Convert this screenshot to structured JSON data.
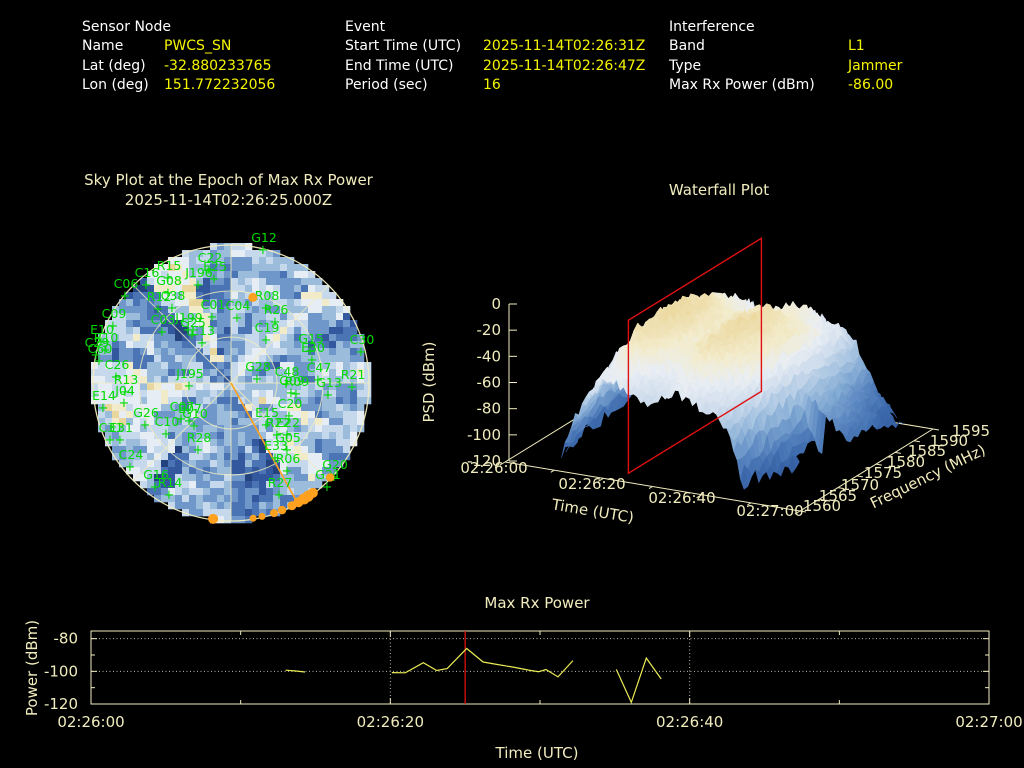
{
  "header": {
    "sensor": {
      "title": "Sensor Node",
      "rows": [
        {
          "label": "Name",
          "value": "PWCS_SN"
        },
        {
          "label": "Lat (deg)",
          "value": "-32.880233765"
        },
        {
          "label": "Lon (deg)",
          "value": "151.772232056"
        }
      ]
    },
    "event": {
      "title": "Event",
      "rows": [
        {
          "label": "Start Time (UTC)",
          "value": "2025-11-14T02:26:31Z"
        },
        {
          "label": "End Time (UTC)",
          "value": "2025-11-14T02:26:47Z"
        },
        {
          "label": "Period (sec)",
          "value": "16"
        }
      ]
    },
    "interference": {
      "title": "Interference",
      "rows": [
        {
          "label": "Band",
          "value": "L1"
        },
        {
          "label": "Type",
          "value": "Jammer"
        },
        {
          "label": "Max Rx Power (dBm)",
          "value": "-86.00"
        }
      ]
    }
  },
  "colors": {
    "background": "#000000",
    "text_white": "#ffffff",
    "value_yellow": "#f5f500",
    "axis_cream": "#f1ecbe",
    "grid_dotted": "#bdbdb0",
    "satellite_green": "#00db00",
    "jammer_orange": "#ffa01e",
    "slice_red": "#e01010",
    "trace_yellow": "#ebeb55"
  },
  "chart_data": [
    {
      "type": "heatmap",
      "variant": "polar-sky-plot",
      "title": "Sky Plot at the Epoch of Max Rx Power",
      "subtitle": "2025-11-14T02:26:25.000Z",
      "elevation_rings_deg": [
        0,
        30,
        60
      ],
      "azimuth_spoke_step_deg": 45,
      "jammer_bearing_deg": 151,
      "horizon_dots": [
        [
          187.5,
          5.0
        ],
        [
          170.7,
          3.5
        ],
        [
          166.9,
          3.5
        ],
        [
          161.7,
          4.0
        ],
        [
          158.1,
          4.2
        ],
        [
          153.6,
          4.5
        ],
        [
          150.5,
          5.0
        ],
        [
          147.8,
          5.5
        ],
        [
          145.7,
          5.5
        ],
        [
          143.3,
          5.0
        ],
        [
          133.6,
          4.2
        ]
      ],
      "inner_dot": {
        "azimuth_deg": 14.3,
        "radius_frac": 0.64
      },
      "palette": [
        "#24437e",
        "#33589d",
        "#4a74b4",
        "#6f97c9",
        "#9cbcdc",
        "#c6d9ec",
        "#e6edf5",
        "#f2ebca",
        "#e9d69c"
      ],
      "satellites": [
        [
          "G12",
          263,
          250
        ],
        [
          "C22",
          209,
          270
        ],
        [
          "E25",
          214,
          279
        ],
        [
          "J196",
          198,
          285
        ],
        [
          "R15",
          168,
          278
        ],
        [
          "C16",
          146,
          285
        ],
        [
          "C06",
          125,
          296
        ],
        [
          "G08",
          168,
          293
        ],
        [
          "R12",
          158,
          309
        ],
        [
          "C38",
          172,
          308
        ],
        [
          "C09",
          113,
          326
        ],
        [
          "C03",
          162,
          332
        ],
        [
          "J199",
          188,
          330
        ],
        [
          "G25",
          192,
          335
        ],
        [
          "E13",
          202,
          343
        ],
        [
          "E10",
          101,
          342
        ],
        [
          "R10",
          105,
          350
        ],
        [
          "C29",
          96,
          355
        ],
        [
          "C60",
          99,
          361
        ],
        [
          "C26",
          116,
          377
        ],
        [
          "R13",
          125,
          392
        ],
        [
          "J04",
          124,
          403
        ],
        [
          "E14",
          103,
          408
        ],
        [
          "G26",
          145,
          425
        ],
        [
          "C10",
          166,
          434
        ],
        [
          "C07",
          181,
          419
        ],
        [
          "E07",
          189,
          421
        ],
        [
          "G10",
          194,
          426
        ],
        [
          "R28",
          198,
          450
        ],
        [
          "C31",
          110,
          440
        ],
        [
          "E31",
          120,
          440
        ],
        [
          "C24",
          130,
          467
        ],
        [
          "G16",
          155,
          487
        ],
        [
          "R14",
          169,
          495
        ],
        [
          "J195",
          189,
          386
        ],
        [
          "G28",
          257,
          379
        ],
        [
          "C48",
          286,
          384
        ],
        [
          "G09",
          291,
          393
        ],
        [
          "R09",
          296,
          394
        ],
        [
          "G13",
          328,
          395
        ],
        [
          "R21",
          352,
          387
        ],
        [
          "C47",
          318,
          380
        ],
        [
          "C30",
          361,
          352
        ],
        [
          "G15",
          310,
          351
        ],
        [
          "E30",
          312,
          360
        ],
        [
          "C19",
          266,
          340
        ],
        [
          "R26",
          275,
          322
        ],
        [
          "R08",
          266,
          308
        ],
        [
          "C01",
          212,
          317
        ],
        [
          "C04",
          237,
          318
        ],
        [
          "C20",
          289,
          416
        ],
        [
          "E15",
          266,
          425
        ],
        [
          "R22",
          277,
          435
        ],
        [
          "E22",
          287,
          435
        ],
        [
          "G05",
          287,
          450
        ],
        [
          "E33",
          275,
          458
        ],
        [
          "R06",
          287,
          471
        ],
        [
          "R27",
          279,
          495
        ],
        [
          "G20",
          334,
          477
        ],
        [
          "G21",
          327,
          487
        ]
      ]
    },
    {
      "type": "heatmap",
      "variant": "surface-3d-waterfall",
      "title": "Waterfall Plot",
      "xlabel": "Time (UTC)",
      "ylabel": "Frequency (MHz)",
      "zlabel": "PSD (dBm)",
      "x_ticks": [
        "02:26:00",
        "02:26:20",
        "02:26:40",
        "02:27:00"
      ],
      "y_ticks": [
        "1560",
        "1565",
        "1570",
        "1575",
        "1580",
        "1585",
        "1590",
        "1595"
      ],
      "z_ticks": [
        "0",
        "-20",
        "-40",
        "-60",
        "-80",
        "-100",
        "-120"
      ],
      "x_range": [
        "02:26:00",
        "02:27:00"
      ],
      "y_range_mhz": [
        1560,
        1595
      ],
      "z_range_dbm": [
        -120,
        0
      ],
      "slice_time": "02:26:25",
      "surface": {
        "active_time_s": [
          8,
          57
        ],
        "peak_psd_dbm": -20,
        "floor_psd_dbm": -110,
        "peak_time_s": [
          15,
          43
        ],
        "peak_freq_mhz": [
          1570,
          1588
        ]
      },
      "palette": [
        "#30589c",
        "#3f6cae",
        "#5d89c2",
        "#84abd4",
        "#aac6e2",
        "#cfdded",
        "#e9eef4",
        "#f3eccd",
        "#ecd9a0"
      ]
    },
    {
      "type": "line",
      "title": "Max Rx Power",
      "xlabel": "Time (UTC)",
      "ylabel": "Power (dBm)",
      "x_ticks": [
        "02:26:00",
        "02:26:20",
        "02:26:40",
        "02:27:00"
      ],
      "y_ticks": [
        -80,
        -100,
        -120
      ],
      "x_range_s": [
        0,
        60
      ],
      "y_range": [
        -122,
        -75
      ],
      "grid": "dotted",
      "epoch_marker_time_s": 25,
      "series": [
        {
          "name": "max-rx-power-dbm",
          "segments": [
            [
              [
                13.0,
                -99.3
              ],
              [
                13.7,
                -99.8
              ],
              [
                14.3,
                -100.4
              ]
            ],
            [
              [
                20.1,
                -100.8
              ],
              [
                21.0,
                -100.9
              ],
              [
                22.2,
                -94.7
              ],
              [
                23.1,
                -99.5
              ],
              [
                23.8,
                -98.3
              ],
              [
                25.1,
                -86.0
              ],
              [
                26.2,
                -94.3
              ],
              [
                27.2,
                -95.9
              ],
              [
                28.3,
                -97.6
              ],
              [
                29.2,
                -99.2
              ],
              [
                29.9,
                -100.2
              ],
              [
                30.4,
                -98.9
              ],
              [
                31.2,
                -103.4
              ],
              [
                32.2,
                -93.4
              ]
            ],
            [
              [
                35.1,
                -98.8
              ],
              [
                36.1,
                -119.0
              ],
              [
                37.1,
                -91.9
              ],
              [
                38.1,
                -104.7
              ]
            ]
          ]
        }
      ]
    }
  ]
}
